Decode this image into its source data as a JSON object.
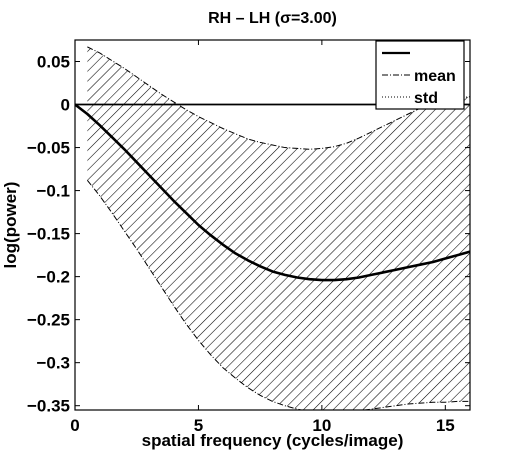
{
  "chart_data": {
    "type": "line",
    "title": "RH – LH (σ=3.00)",
    "xlabel": "spatial frequency (cycles/image)",
    "ylabel": "log(power)",
    "xlim": [
      0,
      16
    ],
    "ylim": [
      -0.355,
      0.075
    ],
    "xticks": [
      0,
      5,
      10,
      15
    ],
    "xtick_labels": [
      "0",
      "5",
      "10",
      "15"
    ],
    "yticks": [
      0.05,
      0,
      -0.05,
      -0.1,
      -0.15,
      -0.2,
      -0.25,
      -0.3,
      -0.35
    ],
    "ytick_labels": [
      "0.05",
      "0",
      "−0.05",
      "−0.1",
      "−0.15",
      "−0.2",
      "−0.25",
      "−0.3",
      "−0.35"
    ],
    "grid": false,
    "legend_position": "top-right",
    "legend": [
      "",
      "mean",
      "std"
    ],
    "reference_line": {
      "y": 0
    },
    "x": [
      0,
      0.5,
      1,
      1.5,
      2,
      2.5,
      3,
      3.5,
      4,
      4.5,
      5,
      5.5,
      6,
      6.5,
      7,
      7.5,
      8,
      8.5,
      9,
      9.5,
      10,
      10.5,
      11,
      11.5,
      12,
      12.5,
      13,
      13.5,
      14,
      14.5,
      15,
      15.5,
      16
    ],
    "series": [
      {
        "name": "mean",
        "values": [
          0.0,
          -0.011,
          -0.024,
          -0.038,
          -0.052,
          -0.067,
          -0.082,
          -0.097,
          -0.112,
          -0.126,
          -0.14,
          -0.152,
          -0.163,
          -0.173,
          -0.181,
          -0.188,
          -0.194,
          -0.198,
          -0.201,
          -0.203,
          -0.204,
          -0.204,
          -0.203,
          -0.201,
          -0.198,
          -0.195,
          -0.192,
          -0.189,
          -0.186,
          -0.183,
          -0.179,
          -0.175,
          -0.171
        ]
      }
    ],
    "band": {
      "x": [
        0.5,
        1,
        1.5,
        2,
        2.5,
        3,
        3.5,
        4,
        4.5,
        5,
        5.5,
        6,
        6.5,
        7,
        7.5,
        8,
        8.5,
        9,
        9.5,
        10,
        10.5,
        11,
        11.5,
        12,
        12.5,
        13,
        13.5,
        14,
        14.5,
        15,
        15.5,
        16
      ],
      "upper": [
        0.067,
        0.06,
        0.051,
        0.042,
        0.032,
        0.022,
        0.012,
        0.003,
        -0.006,
        -0.014,
        -0.021,
        -0.028,
        -0.034,
        -0.04,
        -0.044,
        -0.047,
        -0.05,
        -0.051,
        -0.052,
        -0.051,
        -0.049,
        -0.045,
        -0.039,
        -0.032,
        -0.025,
        -0.018,
        -0.011,
        -0.004,
        0.002,
        0.006,
        0.008,
        0.009
      ],
      "lower": [
        -0.088,
        -0.106,
        -0.126,
        -0.147,
        -0.168,
        -0.19,
        -0.212,
        -0.234,
        -0.255,
        -0.274,
        -0.291,
        -0.306,
        -0.318,
        -0.329,
        -0.338,
        -0.345,
        -0.35,
        -0.354,
        -0.357,
        -0.359,
        -0.359,
        -0.358,
        -0.356,
        -0.354,
        -0.352,
        -0.35,
        -0.348,
        -0.347,
        -0.346,
        -0.346,
        -0.345,
        -0.345
      ]
    }
  }
}
